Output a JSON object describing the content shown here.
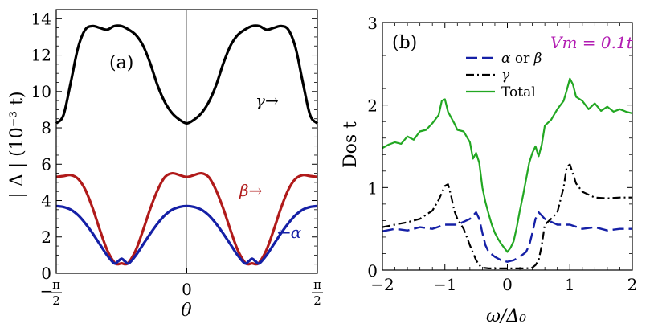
{
  "chart_data": [
    {
      "type": "line",
      "panel_label": "(a)",
      "xlabel": "θ",
      "ylabel": "| Δ | (10⁻³ t)",
      "xlim": [
        -1.5708,
        1.5708
      ],
      "ylim": [
        0,
        14.5
      ],
      "x_ticks": [
        {
          "value": -1.5708,
          "text": "π/2",
          "sign": "−"
        },
        {
          "value": 0,
          "text": "0",
          "sign": ""
        },
        {
          "value": 1.5708,
          "text": "π/2",
          "sign": ""
        }
      ],
      "y_ticks": [
        0,
        2,
        4,
        6,
        8,
        10,
        12,
        14
      ],
      "series": [
        {
          "name": "γ",
          "annotation": "γ→",
          "color": "#000000",
          "x": [
            -1.571,
            -1.484,
            -1.396,
            -1.309,
            -1.222,
            -1.134,
            -1.047,
            -0.96,
            -0.873,
            -0.785,
            -0.698,
            -0.611,
            -0.524,
            -0.436,
            -0.349,
            -0.262,
            -0.175,
            -0.087,
            0.0,
            0.087,
            0.175,
            0.262,
            0.349,
            0.436,
            0.524,
            0.611,
            0.698,
            0.785,
            0.873,
            0.96,
            1.047,
            1.134,
            1.222,
            1.309,
            1.396,
            1.484,
            1.571
          ],
          "y": [
            8.25,
            8.7,
            10.5,
            12.4,
            13.4,
            13.6,
            13.5,
            13.4,
            13.6,
            13.6,
            13.4,
            13.1,
            12.5,
            11.5,
            10.3,
            9.4,
            8.8,
            8.45,
            8.25,
            8.45,
            8.8,
            9.4,
            10.3,
            11.5,
            12.5,
            13.1,
            13.4,
            13.6,
            13.6,
            13.4,
            13.5,
            13.6,
            13.4,
            12.4,
            10.5,
            8.7,
            8.25
          ]
        },
        {
          "name": "β",
          "annotation": "β→",
          "color": "#b01a1a",
          "x": [
            -1.571,
            -1.484,
            -1.396,
            -1.309,
            -1.222,
            -1.134,
            -1.047,
            -0.96,
            -0.873,
            -0.829,
            -0.785,
            -0.742,
            -0.698,
            -0.611,
            -0.524,
            -0.436,
            -0.349,
            -0.262,
            -0.175,
            -0.087,
            0.0,
            0.087,
            0.175,
            0.262,
            0.349,
            0.436,
            0.524,
            0.611,
            0.698,
            0.742,
            0.785,
            0.829,
            0.873,
            0.96,
            1.047,
            1.134,
            1.222,
            1.309,
            1.396,
            1.484,
            1.571
          ],
          "y": [
            5.3,
            5.35,
            5.4,
            5.2,
            4.6,
            3.6,
            2.4,
            1.3,
            0.6,
            0.5,
            0.55,
            0.5,
            0.6,
            1.3,
            2.4,
            3.6,
            4.6,
            5.3,
            5.5,
            5.4,
            5.3,
            5.4,
            5.5,
            5.3,
            4.6,
            3.6,
            2.4,
            1.3,
            0.6,
            0.5,
            0.55,
            0.5,
            0.6,
            1.3,
            2.4,
            3.6,
            4.6,
            5.2,
            5.4,
            5.35,
            5.3
          ]
        },
        {
          "name": "α",
          "annotation": "←α",
          "color": "#1520a6",
          "x": [
            -1.571,
            -1.484,
            -1.396,
            -1.309,
            -1.222,
            -1.134,
            -1.047,
            -0.96,
            -0.873,
            -0.829,
            -0.785,
            -0.742,
            -0.698,
            -0.611,
            -0.524,
            -0.436,
            -0.349,
            -0.262,
            -0.175,
            -0.087,
            0.0,
            0.087,
            0.175,
            0.262,
            0.349,
            0.436,
            0.524,
            0.611,
            0.698,
            0.742,
            0.785,
            0.829,
            0.873,
            0.96,
            1.047,
            1.134,
            1.222,
            1.309,
            1.396,
            1.484,
            1.571
          ],
          "y": [
            3.7,
            3.65,
            3.5,
            3.2,
            2.75,
            2.2,
            1.6,
            1.0,
            0.55,
            0.65,
            0.8,
            0.65,
            0.55,
            1.0,
            1.6,
            2.2,
            2.75,
            3.2,
            3.5,
            3.65,
            3.7,
            3.65,
            3.5,
            3.2,
            2.75,
            2.2,
            1.6,
            1.0,
            0.55,
            0.65,
            0.8,
            0.65,
            0.55,
            1.0,
            1.6,
            2.2,
            2.75,
            3.2,
            3.5,
            3.65,
            3.7
          ]
        }
      ]
    },
    {
      "type": "line",
      "panel_label": "(b)",
      "xlabel": "ω/Δ₀",
      "ylabel": "Dos t",
      "annotation": "Vm = 0.1t",
      "annotation_color": "#b21bb2",
      "xlim": [
        -2,
        2
      ],
      "ylim": [
        0,
        3
      ],
      "x_ticks": [
        -2,
        -1,
        0,
        1,
        2
      ],
      "y_ticks": [
        0,
        1,
        2,
        3
      ],
      "legend_position": "top-center",
      "series": [
        {
          "name": "α or β",
          "color": "#1520a6",
          "style": "dashed",
          "x": [
            -2.0,
            -1.8,
            -1.6,
            -1.4,
            -1.2,
            -1.0,
            -0.8,
            -0.6,
            -0.5,
            -0.45,
            -0.4,
            -0.35,
            -0.3,
            -0.2,
            -0.1,
            0.0,
            0.1,
            0.2,
            0.3,
            0.35,
            0.4,
            0.45,
            0.5,
            0.6,
            0.8,
            1.0,
            1.2,
            1.4,
            1.6,
            1.8,
            2.0
          ],
          "y": [
            0.47,
            0.5,
            0.48,
            0.52,
            0.5,
            0.55,
            0.55,
            0.62,
            0.7,
            0.62,
            0.45,
            0.3,
            0.22,
            0.16,
            0.12,
            0.1,
            0.12,
            0.16,
            0.22,
            0.3,
            0.45,
            0.62,
            0.7,
            0.62,
            0.55,
            0.55,
            0.5,
            0.52,
            0.48,
            0.5,
            0.5
          ]
        },
        {
          "name": "γ",
          "color": "#000000",
          "style": "dashdot",
          "x": [
            -2.0,
            -1.8,
            -1.6,
            -1.4,
            -1.2,
            -1.1,
            -1.0,
            -0.95,
            -0.9,
            -0.85,
            -0.8,
            -0.7,
            -0.6,
            -0.5,
            -0.45,
            -0.4,
            -0.3,
            -0.2,
            0.0,
            0.2,
            0.3,
            0.4,
            0.45,
            0.5,
            0.55,
            0.6,
            0.7,
            0.8,
            0.85,
            0.9,
            0.95,
            1.0,
            1.1,
            1.2,
            1.4,
            1.6,
            1.8,
            2.0
          ],
          "y": [
            0.52,
            0.55,
            0.58,
            0.62,
            0.72,
            0.85,
            1.02,
            1.04,
            0.9,
            0.72,
            0.62,
            0.5,
            0.3,
            0.12,
            0.06,
            0.03,
            0.02,
            0.02,
            0.02,
            0.02,
            0.02,
            0.03,
            0.06,
            0.12,
            0.3,
            0.55,
            0.62,
            0.7,
            0.85,
            1.0,
            1.25,
            1.28,
            1.05,
            0.95,
            0.88,
            0.87,
            0.88,
            0.88
          ]
        },
        {
          "name": "Total",
          "color": "#22a722",
          "style": "solid",
          "x": [
            -2.0,
            -1.9,
            -1.8,
            -1.7,
            -1.6,
            -1.5,
            -1.4,
            -1.3,
            -1.2,
            -1.1,
            -1.05,
            -1.0,
            -0.95,
            -0.9,
            -0.85,
            -0.8,
            -0.7,
            -0.6,
            -0.55,
            -0.5,
            -0.45,
            -0.4,
            -0.35,
            -0.3,
            -0.25,
            -0.2,
            -0.15,
            -0.1,
            -0.05,
            0.0,
            0.05,
            0.1,
            0.15,
            0.2,
            0.25,
            0.3,
            0.35,
            0.4,
            0.45,
            0.5,
            0.55,
            0.6,
            0.7,
            0.8,
            0.9,
            0.95,
            1.0,
            1.05,
            1.1,
            1.2,
            1.3,
            1.4,
            1.5,
            1.6,
            1.7,
            1.8,
            1.9,
            2.0
          ],
          "y": [
            1.48,
            1.52,
            1.55,
            1.53,
            1.62,
            1.58,
            1.68,
            1.7,
            1.78,
            1.88,
            2.05,
            2.07,
            1.92,
            1.85,
            1.78,
            1.7,
            1.68,
            1.55,
            1.35,
            1.42,
            1.3,
            1.0,
            0.82,
            0.68,
            0.55,
            0.45,
            0.38,
            0.32,
            0.27,
            0.22,
            0.27,
            0.35,
            0.52,
            0.72,
            0.9,
            1.1,
            1.3,
            1.42,
            1.5,
            1.38,
            1.52,
            1.75,
            1.82,
            1.95,
            2.05,
            2.18,
            2.32,
            2.25,
            2.1,
            2.05,
            1.95,
            2.02,
            1.93,
            1.98,
            1.92,
            1.95,
            1.92,
            1.9
          ]
        }
      ]
    }
  ]
}
